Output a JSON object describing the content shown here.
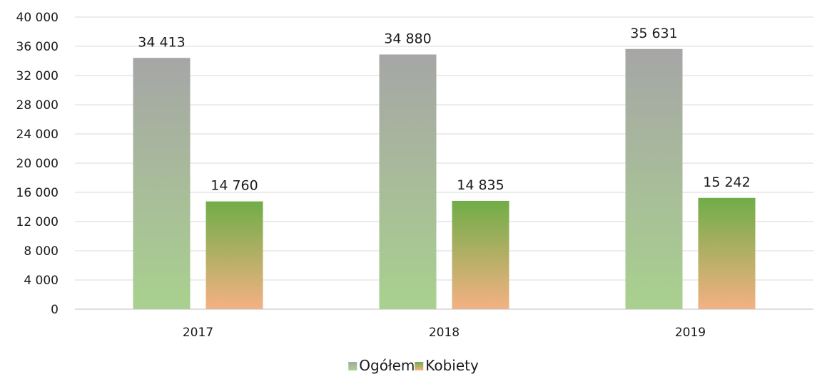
{
  "chart_data": {
    "type": "bar",
    "categories": [
      "2017",
      "2018",
      "2019"
    ],
    "series": [
      {
        "name": "Ogółem",
        "values": [
          34413,
          34880,
          35631
        ],
        "labels": [
          "34 413",
          "34 880",
          "35 631"
        ],
        "color_top": "#a6a6a6",
        "color_bottom": "#a9d18e"
      },
      {
        "name": "Kobiety",
        "values": [
          14760,
          14835,
          15242
        ],
        "labels": [
          "14 760",
          "14 835",
          "15 242"
        ],
        "color_top": "#70ad47",
        "color_bottom": "#f4b183"
      }
    ],
    "y_ticks": [
      0,
      4000,
      8000,
      12000,
      16000,
      20000,
      24000,
      28000,
      32000,
      36000,
      40000
    ],
    "y_tick_labels": [
      "0",
      "4 000",
      "8 000",
      "12 000",
      "16 000",
      "20 000",
      "24 000",
      "28 000",
      "32 000",
      "36 000",
      "40 000"
    ],
    "ylim": [
      0,
      40000
    ],
    "grid": true,
    "legend_position": "bottom"
  }
}
